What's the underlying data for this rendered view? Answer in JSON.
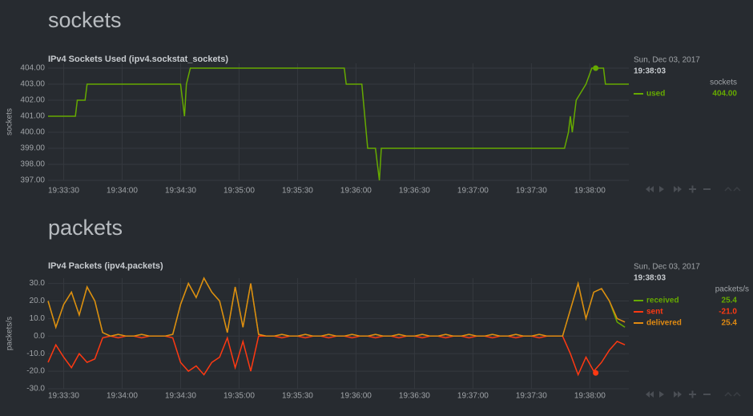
{
  "chart_data": [
    {
      "type": "line",
      "section": "sockets",
      "title": "IPv4 Sockets Used (ipv4.sockstat_sockets)",
      "ylabel": "sockets",
      "units": "sockets",
      "date": "Sun, Dec 03, 2017",
      "hover_time": "19:38:03",
      "x": [
        "19:33:22",
        "19:33:36",
        "19:33:37",
        "19:33:41",
        "19:33:42",
        "19:34:30",
        "19:34:32",
        "19:34:33",
        "19:34:35",
        "19:35:54",
        "19:35:55",
        "19:36:03",
        "19:36:06",
        "19:36:10",
        "19:36:12",
        "19:36:13",
        "19:37:47",
        "19:37:49",
        "19:37:50",
        "19:37:51",
        "19:37:53",
        "19:37:58",
        "19:38:01",
        "19:38:07",
        "19:38:08",
        "19:38:20"
      ],
      "series": [
        {
          "name": "used",
          "color": "#66aa00",
          "values": [
            401,
            401,
            402,
            402,
            403,
            403,
            401,
            403,
            404,
            404,
            403,
            403,
            399,
            399,
            397,
            399,
            399,
            400,
            401,
            400,
            402,
            403,
            404,
            404,
            403,
            403
          ],
          "hover_value": {
            "value": 404,
            "label": "404.00"
          }
        }
      ],
      "xlim": [
        "19:33:22",
        "19:38:20"
      ],
      "xticks": [
        "19:33:30",
        "19:34:00",
        "19:34:30",
        "19:35:00",
        "19:35:30",
        "19:36:00",
        "19:36:30",
        "19:37:00",
        "19:37:30",
        "19:38:00"
      ],
      "ylim": [
        397,
        404.3
      ],
      "yticks": [
        {
          "value": 397,
          "label": "397.00"
        },
        {
          "value": 398,
          "label": "398.00"
        },
        {
          "value": 399,
          "label": "399.00"
        },
        {
          "value": 400,
          "label": "400.00"
        },
        {
          "value": 401,
          "label": "401.00"
        },
        {
          "value": 402,
          "label": "402.00"
        },
        {
          "value": 403,
          "label": "403.00"
        },
        {
          "value": 404,
          "label": "404.00"
        }
      ],
      "grid": true
    },
    {
      "type": "line",
      "section": "packets",
      "title": "IPv4 Packets (ipv4.packets)",
      "ylabel": "packets/s",
      "units": "packets/s",
      "date": "Sun, Dec 03, 2017",
      "hover_time": "19:38:03",
      "x": [
        "19:33:22",
        "19:33:26",
        "19:33:30",
        "19:33:34",
        "19:33:38",
        "19:33:42",
        "19:33:46",
        "19:33:50",
        "19:33:54",
        "19:33:58",
        "19:34:02",
        "19:34:06",
        "19:34:10",
        "19:34:14",
        "19:34:18",
        "19:34:22",
        "19:34:26",
        "19:34:30",
        "19:34:34",
        "19:34:38",
        "19:34:42",
        "19:34:46",
        "19:34:50",
        "19:34:54",
        "19:34:58",
        "19:35:02",
        "19:35:06",
        "19:35:10",
        "19:35:14",
        "19:35:18",
        "19:35:22",
        "19:35:26",
        "19:35:30",
        "19:35:34",
        "19:35:38",
        "19:35:42",
        "19:35:46",
        "19:35:50",
        "19:35:54",
        "19:35:58",
        "19:36:02",
        "19:36:06",
        "19:36:10",
        "19:36:14",
        "19:36:18",
        "19:36:22",
        "19:36:26",
        "19:36:30",
        "19:36:34",
        "19:36:38",
        "19:36:42",
        "19:36:46",
        "19:36:50",
        "19:36:54",
        "19:36:58",
        "19:37:02",
        "19:37:06",
        "19:37:10",
        "19:37:14",
        "19:37:18",
        "19:37:22",
        "19:37:26",
        "19:37:30",
        "19:37:34",
        "19:37:38",
        "19:37:42",
        "19:37:46",
        "19:37:50",
        "19:37:54",
        "19:37:58",
        "19:38:02",
        "19:38:06",
        "19:38:10",
        "19:38:14",
        "19:38:18"
      ],
      "series": [
        {
          "name": "received",
          "color": "#66aa00",
          "values": [
            20,
            5,
            18,
            25,
            12,
            28,
            20,
            2,
            0,
            1,
            0,
            0,
            1,
            0,
            0,
            0,
            1,
            18,
            30,
            22,
            33,
            25,
            20,
            2,
            28,
            5,
            30,
            1,
            0,
            0,
            1,
            0,
            0,
            1,
            0,
            0,
            1,
            0,
            0,
            1,
            0,
            0,
            1,
            0,
            0,
            1,
            0,
            0,
            1,
            0,
            0,
            1,
            0,
            0,
            1,
            0,
            0,
            1,
            0,
            0,
            1,
            0,
            0,
            1,
            0,
            0,
            0,
            15,
            30,
            10,
            25,
            27,
            20,
            8,
            5
          ],
          "hover_value": {
            "value": 25.4,
            "label": "25.4"
          }
        },
        {
          "name": "sent",
          "color": "#fe3912",
          "values": [
            -15,
            -5,
            -12,
            -18,
            -10,
            -15,
            -13,
            -1,
            0,
            -1,
            0,
            0,
            -1,
            0,
            0,
            0,
            -1,
            -15,
            -20,
            -17,
            -22,
            -15,
            -12,
            -1,
            -18,
            -3,
            -20,
            0,
            0,
            0,
            -1,
            0,
            0,
            -1,
            0,
            0,
            -1,
            0,
            0,
            -1,
            0,
            0,
            -1,
            0,
            0,
            -1,
            0,
            0,
            -1,
            0,
            0,
            -1,
            0,
            0,
            -1,
            0,
            0,
            -1,
            0,
            0,
            -1,
            0,
            0,
            -1,
            0,
            0,
            0,
            -10,
            -22,
            -12,
            -20,
            -15,
            -8,
            -3,
            -5
          ],
          "hover_value": {
            "value": -21,
            "label": "-21.0"
          }
        },
        {
          "name": "delivered",
          "color": "#e08a12",
          "values": [
            20,
            5,
            18,
            25,
            12,
            28,
            20,
            2,
            0,
            1,
            0,
            0,
            1,
            0,
            0,
            0,
            1,
            18,
            30,
            22,
            33,
            25,
            20,
            2,
            28,
            5,
            30,
            1,
            0,
            0,
            1,
            0,
            0,
            1,
            0,
            0,
            1,
            0,
            0,
            1,
            0,
            0,
            1,
            0,
            0,
            1,
            0,
            0,
            1,
            0,
            0,
            1,
            0,
            0,
            1,
            0,
            0,
            1,
            0,
            0,
            1,
            0,
            0,
            1,
            0,
            0,
            0,
            15,
            30,
            10,
            25,
            27,
            20,
            10,
            8
          ],
          "hover_value": {
            "value": 25.4,
            "label": "25.4"
          }
        }
      ],
      "xlim": [
        "19:33:22",
        "19:38:20"
      ],
      "xticks": [
        "19:33:30",
        "19:34:00",
        "19:34:30",
        "19:35:00",
        "19:35:30",
        "19:36:00",
        "19:36:30",
        "19:37:00",
        "19:37:30",
        "19:38:00"
      ],
      "ylim": [
        -30,
        33
      ],
      "yticks": [
        {
          "value": -30,
          "label": "-30.0"
        },
        {
          "value": -20,
          "label": "-20.0"
        },
        {
          "value": -10,
          "label": "-10.0"
        },
        {
          "value": 0,
          "label": "0.0"
        },
        {
          "value": 10,
          "label": "10.0"
        },
        {
          "value": 20,
          "label": "20.0"
        },
        {
          "value": 30,
          "label": "30.0"
        }
      ],
      "grid": true
    }
  ]
}
